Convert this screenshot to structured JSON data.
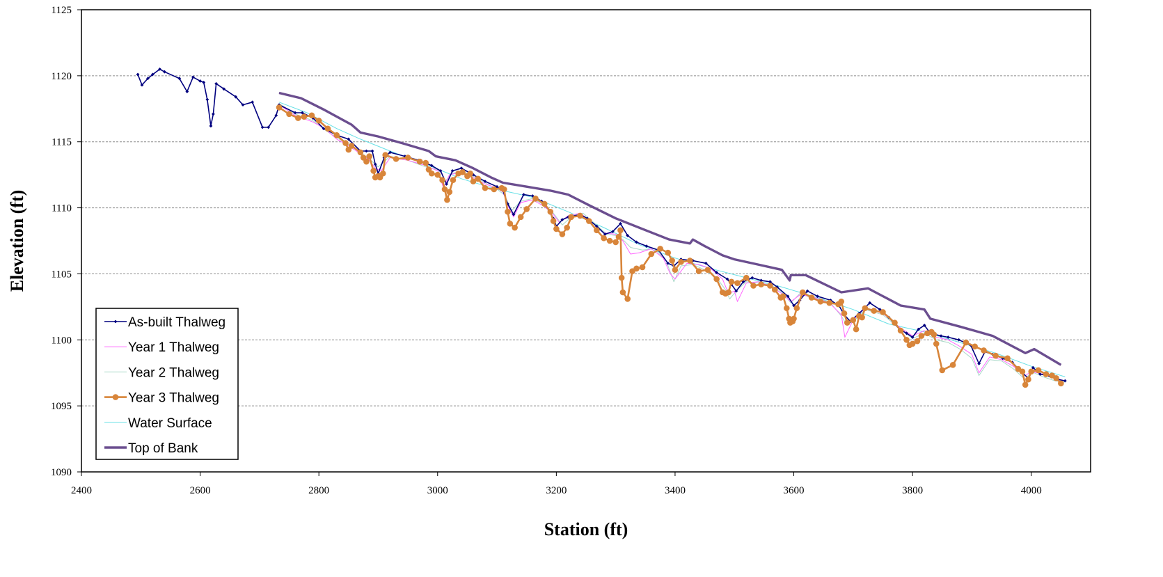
{
  "chart_data": {
    "type": "line",
    "title": "",
    "xlabel": "Station (ft)",
    "ylabel": "Elevation (ft)",
    "xlim": [
      2400,
      4100
    ],
    "ylim": [
      1090,
      1125
    ],
    "x_ticks": [
      2400,
      2600,
      2800,
      3000,
      3200,
      3400,
      3600,
      3800,
      4000
    ],
    "y_ticks": [
      1090,
      1095,
      1100,
      1105,
      1110,
      1115,
      1120,
      1125
    ],
    "grid": "horizontal dashed",
    "legend_position": "bottom-left",
    "series": [
      {
        "name": "As-built Thalweg",
        "color": "#00007f",
        "marker": "small-diamond",
        "x": [
          2495,
          2502,
          2512,
          2520,
          2532,
          2540,
          2565,
          2578,
          2588,
          2600,
          2606,
          2612,
          2618,
          2622,
          2627,
          2640,
          2660,
          2672,
          2688,
          2705,
          2715,
          2728,
          2733,
          2760,
          2772,
          2790,
          2808,
          2830,
          2850,
          2870,
          2880,
          2890,
          2895,
          2900,
          2910,
          2920,
          2945,
          2968,
          2990,
          3005,
          3015,
          3025,
          3040,
          3060,
          3080,
          3100,
          3110,
          3118,
          3128,
          3145,
          3160,
          3175,
          3188,
          3195,
          3200,
          3210,
          3220,
          3240,
          3252,
          3268,
          3282,
          3295,
          3308,
          3320,
          3335,
          3352,
          3372,
          3388,
          3398,
          3410,
          3430,
          3452,
          3470,
          3488,
          3495,
          3503,
          3515,
          3530,
          3545,
          3560,
          3572,
          3590,
          3600,
          3610,
          3623,
          3640,
          3662,
          3676,
          3685,
          3695,
          3710,
          3728,
          3745,
          3760,
          3778,
          3790,
          3800,
          3810,
          3820,
          3830,
          3848,
          3860,
          3878,
          3898,
          3912,
          3922,
          3935,
          3952,
          3968,
          3985,
          3995,
          4003,
          4015,
          4030,
          4045,
          4057
        ],
        "y": [
          1120.1,
          1119.3,
          1119.8,
          1120.1,
          1120.5,
          1120.3,
          1119.8,
          1118.8,
          1119.9,
          1119.6,
          1119.5,
          1118.2,
          1116.2,
          1117.1,
          1119.4,
          1119.0,
          1118.4,
          1117.8,
          1118.0,
          1116.1,
          1116.1,
          1117.0,
          1117.8,
          1117.2,
          1117.2,
          1116.8,
          1116.0,
          1115.5,
          1115.2,
          1114.3,
          1114.3,
          1114.3,
          1113.3,
          1112.6,
          1113.8,
          1114.2,
          1113.9,
          1113.6,
          1113.2,
          1112.8,
          1111.8,
          1112.8,
          1113.0,
          1112.5,
          1112.0,
          1111.6,
          1111.3,
          1110.3,
          1109.5,
          1111.0,
          1110.9,
          1110.5,
          1109.8,
          1109.2,
          1108.6,
          1109.1,
          1109.3,
          1109.5,
          1109.2,
          1108.6,
          1108.0,
          1108.2,
          1108.8,
          1107.9,
          1107.4,
          1107.1,
          1106.8,
          1105.8,
          1105.6,
          1106.1,
          1106.0,
          1105.8,
          1105.1,
          1104.6,
          1104.2,
          1103.7,
          1104.4,
          1104.7,
          1104.5,
          1104.4,
          1104.0,
          1103.3,
          1102.6,
          1103.0,
          1103.7,
          1103.3,
          1103.0,
          1102.6,
          1101.9,
          1101.4,
          1102.0,
          1102.8,
          1102.3,
          1101.7,
          1100.8,
          1100.5,
          1100.2,
          1100.8,
          1101.1,
          1100.5,
          1100.3,
          1100.2,
          1100.0,
          1099.6,
          1098.2,
          1099.1,
          1098.9,
          1098.6,
          1098.3,
          1097.5,
          1097.1,
          1097.9,
          1097.4,
          1097.3,
          1097.0,
          1096.9
        ]
      },
      {
        "name": "Year 1 Thalweg",
        "color": "#ff66ff",
        "marker": "none",
        "x": [
          2733,
          2760,
          2790,
          2810,
          2830,
          2850,
          2870,
          2885,
          2895,
          2905,
          2920,
          2950,
          2980,
          3000,
          3010,
          3020,
          3040,
          3060,
          3080,
          3100,
          3110,
          3120,
          3128,
          3140,
          3160,
          3180,
          3195,
          3205,
          3220,
          3240,
          3260,
          3280,
          3300,
          3312,
          3325,
          3340,
          3360,
          3380,
          3392,
          3400,
          3420,
          3440,
          3460,
          3480,
          3490,
          3500,
          3505,
          3520,
          3540,
          3560,
          3580,
          3595,
          3610,
          3630,
          3660,
          3680,
          3686,
          3700,
          3720,
          3750,
          3780,
          3800,
          3820,
          3840,
          3860,
          3880,
          3900,
          3912,
          3930,
          3950,
          3970,
          3990,
          4000,
          4020,
          4040,
          4057
        ],
        "y": [
          1117.8,
          1117.0,
          1116.5,
          1116.0,
          1115.2,
          1114.7,
          1114.1,
          1113.6,
          1113.0,
          1112.8,
          1113.8,
          1113.6,
          1113.2,
          1112.8,
          1111.5,
          1112.5,
          1112.7,
          1112.3,
          1111.8,
          1111.5,
          1111.2,
          1110.0,
          1109.3,
          1110.4,
          1110.6,
          1110.1,
          1109.5,
          1108.9,
          1109.4,
          1109.6,
          1108.9,
          1108.1,
          1108.0,
          1107.5,
          1106.5,
          1106.6,
          1106.9,
          1106.2,
          1105.0,
          1104.6,
          1105.8,
          1105.7,
          1105.4,
          1104.6,
          1103.5,
          1103.7,
          1102.9,
          1104.3,
          1104.4,
          1104.1,
          1103.5,
          1102.9,
          1103.4,
          1103.3,
          1102.8,
          1101.9,
          1100.2,
          1101.5,
          1102.4,
          1102.0,
          1100.9,
          1100.3,
          1100.7,
          1100.2,
          1100.0,
          1099.5,
          1098.9,
          1097.5,
          1098.7,
          1098.5,
          1098.0,
          1097.3,
          1097.6,
          1097.4,
          1097.1,
          1096.9
        ]
      },
      {
        "name": "Year 2 Thalweg",
        "color": "#a8d8c8",
        "marker": "none",
        "x": [
          2733,
          2760,
          2790,
          2810,
          2830,
          2850,
          2870,
          2885,
          2900,
          2920,
          2950,
          2980,
          3000,
          3010,
          3025,
          3040,
          3060,
          3080,
          3100,
          3112,
          3125,
          3140,
          3160,
          3180,
          3195,
          3210,
          3225,
          3245,
          3265,
          3285,
          3300,
          3312,
          3325,
          3345,
          3365,
          3385,
          3398,
          3410,
          3430,
          3450,
          3470,
          3485,
          3492,
          3505,
          3520,
          3540,
          3560,
          3580,
          3595,
          3610,
          3630,
          3660,
          3680,
          3690,
          3705,
          3720,
          3750,
          3780,
          3800,
          3820,
          3840,
          3860,
          3880,
          3900,
          3912,
          3930,
          3950,
          3970,
          3990,
          4000,
          4020,
          4040,
          4057
        ],
        "y": [
          1117.9,
          1117.1,
          1116.6,
          1115.9,
          1115.3,
          1114.8,
          1114.2,
          1113.7,
          1113.1,
          1113.9,
          1113.6,
          1113.1,
          1112.9,
          1111.9,
          1112.6,
          1112.8,
          1112.4,
          1111.9,
          1111.4,
          1111.0,
          1109.8,
          1110.5,
          1110.7,
          1110.2,
          1109.6,
          1108.7,
          1109.3,
          1109.6,
          1108.8,
          1108.0,
          1107.9,
          1107.6,
          1107.0,
          1106.8,
          1106.9,
          1106.0,
          1104.4,
          1105.6,
          1105.7,
          1105.3,
          1104.7,
          1103.8,
          1103.1,
          1103.8,
          1104.4,
          1104.3,
          1104.2,
          1103.6,
          1102.8,
          1103.5,
          1103.2,
          1102.9,
          1101.8,
          1101.1,
          1101.6,
          1102.3,
          1101.9,
          1100.8,
          1100.1,
          1100.5,
          1100.0,
          1099.8,
          1099.3,
          1098.6,
          1097.3,
          1098.5,
          1098.4,
          1097.8,
          1097.0,
          1097.6,
          1097.2,
          1096.9,
          1096.8
        ]
      },
      {
        "name": "Year 3 Thalweg",
        "color": "#d8853a",
        "marker": "circle",
        "x": [
          2733,
          2750,
          2765,
          2775,
          2788,
          2800,
          2815,
          2830,
          2845,
          2850,
          2855,
          2870,
          2875,
          2880,
          2885,
          2892,
          2895,
          2900,
          2903,
          2908,
          2912,
          2930,
          2950,
          2970,
          2980,
          2985,
          2990,
          3000,
          3008,
          3012,
          3016,
          3020,
          3026,
          3035,
          3042,
          3050,
          3055,
          3060,
          3068,
          3080,
          3095,
          3108,
          3112,
          3118,
          3122,
          3130,
          3140,
          3150,
          3165,
          3180,
          3190,
          3195,
          3200,
          3210,
          3218,
          3225,
          3240,
          3255,
          3268,
          3280,
          3290,
          3300,
          3305,
          3308,
          3310,
          3312,
          3320,
          3328,
          3335,
          3345,
          3360,
          3375,
          3388,
          3395,
          3400,
          3410,
          3425,
          3440,
          3455,
          3470,
          3480,
          3485,
          3490,
          3495,
          3505,
          3520,
          3532,
          3545,
          3560,
          3568,
          3578,
          3582,
          3588,
          3592,
          3594,
          3598,
          3600,
          3605,
          3615,
          3630,
          3645,
          3660,
          3675,
          3680,
          3685,
          3690,
          3700,
          3705,
          3710,
          3715,
          3720,
          3735,
          3750,
          3770,
          3780,
          3790,
          3795,
          3800,
          3808,
          3815,
          3825,
          3832,
          3836,
          3840,
          3850,
          3868,
          3890,
          3905,
          3920,
          3940,
          3960,
          3978,
          3985,
          3990,
          3995,
          4000,
          4012,
          4025,
          4035,
          4042,
          4050
        ],
        "y": [
          1117.6,
          1117.1,
          1116.8,
          1116.9,
          1117.0,
          1116.6,
          1116.0,
          1115.5,
          1114.9,
          1114.4,
          1114.7,
          1114.2,
          1113.8,
          1113.5,
          1113.9,
          1112.8,
          1112.3,
          1112.4,
          1112.3,
          1112.6,
          1114.0,
          1113.7,
          1113.8,
          1113.5,
          1113.4,
          1112.9,
          1112.6,
          1112.5,
          1112.1,
          1111.4,
          1110.6,
          1111.2,
          1112.1,
          1112.6,
          1112.7,
          1112.4,
          1112.6,
          1112.0,
          1112.2,
          1111.5,
          1111.4,
          1111.5,
          1111.4,
          1109.7,
          1108.8,
          1108.5,
          1109.3,
          1109.9,
          1110.7,
          1110.3,
          1109.7,
          1109.0,
          1108.4,
          1108.0,
          1108.5,
          1109.3,
          1109.4,
          1109.0,
          1108.3,
          1107.7,
          1107.5,
          1107.4,
          1107.8,
          1108.3,
          1104.7,
          1103.6,
          1103.1,
          1105.2,
          1105.4,
          1105.5,
          1106.5,
          1106.9,
          1106.6,
          1106.0,
          1105.3,
          1105.9,
          1106.0,
          1105.2,
          1105.3,
          1104.6,
          1103.6,
          1103.5,
          1103.6,
          1104.4,
          1104.3,
          1104.7,
          1104.1,
          1104.2,
          1104.1,
          1103.8,
          1103.2,
          1103.3,
          1102.4,
          1101.6,
          1101.3,
          1101.4,
          1101.6,
          1102.4,
          1103.6,
          1103.2,
          1102.9,
          1102.8,
          1102.7,
          1102.9,
          1102.0,
          1101.3,
          1101.5,
          1100.8,
          1101.8,
          1101.7,
          1102.4,
          1102.2,
          1102.1,
          1101.3,
          1100.7,
          1100.0,
          1099.6,
          1099.7,
          1099.9,
          1100.3,
          1100.5,
          1100.6,
          1100.4,
          1099.7,
          1097.7,
          1098.1,
          1099.8,
          1099.5,
          1099.2,
          1098.8,
          1098.6,
          1097.8,
          1097.6,
          1096.6,
          1097.0,
          1097.6,
          1097.7,
          1097.4,
          1097.3,
          1097.1,
          1096.7
        ]
      },
      {
        "name": "Water Surface",
        "color": "#66e0e6",
        "marker": "none",
        "x": [
          2733,
          2780,
          2830,
          2870,
          2920,
          2980,
          3040,
          3100,
          3160,
          3220,
          3280,
          3340,
          3400,
          3460,
          3520,
          3580,
          3640,
          3700,
          3760,
          3820,
          3880,
          3940,
          4000,
          4057
        ],
        "y": [
          1118.0,
          1117.2,
          1116.0,
          1115.2,
          1114.3,
          1113.3,
          1112.2,
          1111.4,
          1110.8,
          1109.7,
          1108.5,
          1107.2,
          1106.2,
          1105.4,
          1104.7,
          1104.0,
          1103.2,
          1102.3,
          1101.2,
          1100.6,
          1099.8,
          1099.0,
          1098.0,
          1097.2
        ]
      },
      {
        "name": "Top of Bank",
        "color": "#6b4e8f",
        "marker": "none",
        "x": [
          2733,
          2770,
          2810,
          2855,
          2870,
          2900,
          2940,
          2985,
          2997,
          3030,
          3060,
          3090,
          3110,
          3150,
          3190,
          3220,
          3255,
          3300,
          3345,
          3390,
          3425,
          3430,
          3450,
          3480,
          3500,
          3540,
          3580,
          3593,
          3595,
          3620,
          3680,
          3725,
          3780,
          3820,
          3830,
          3880,
          3935,
          3990,
          4005,
          4050
        ],
        "y": [
          1118.7,
          1118.3,
          1117.4,
          1116.3,
          1115.7,
          1115.4,
          1114.9,
          1114.3,
          1113.9,
          1113.6,
          1113.0,
          1112.3,
          1111.9,
          1111.6,
          1111.3,
          1111.0,
          1110.2,
          1109.2,
          1108.4,
          1107.6,
          1107.3,
          1107.6,
          1107.1,
          1106.4,
          1106.1,
          1105.7,
          1105.3,
          1104.5,
          1104.9,
          1104.9,
          1103.6,
          1103.9,
          1102.6,
          1102.3,
          1101.6,
          1101.0,
          1100.3,
          1099.0,
          1099.3,
          1098.1
        ]
      }
    ]
  }
}
